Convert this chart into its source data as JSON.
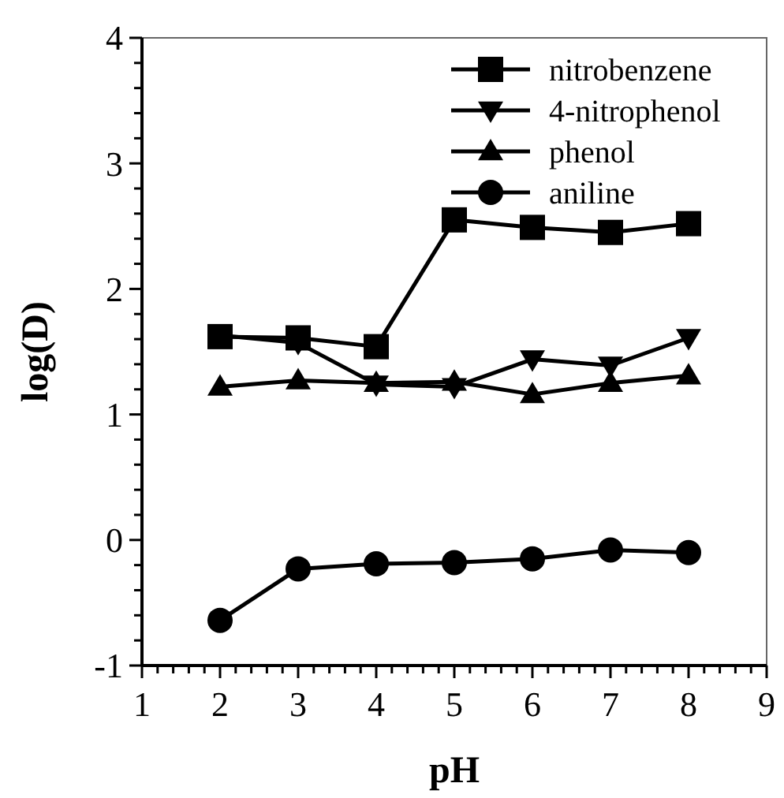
{
  "chart_data": {
    "type": "line",
    "xlabel": "pH",
    "ylabel": "log(D)",
    "x": [
      2,
      3,
      4,
      5,
      6,
      7,
      8
    ],
    "series": [
      {
        "name": "nitrobenzene",
        "color": "#000000",
        "marker": "square",
        "values": [
          1.62,
          1.61,
          1.54,
          2.55,
          2.49,
          2.45,
          2.52
        ]
      },
      {
        "name": "4-nitrophenol",
        "color": "#000000",
        "marker": "triangle-down",
        "values": [
          1.63,
          1.57,
          1.24,
          1.22,
          1.44,
          1.39,
          1.61
        ]
      },
      {
        "name": "phenol",
        "color": "#000000",
        "marker": "triangle",
        "values": [
          1.22,
          1.27,
          1.25,
          1.26,
          1.16,
          1.25,
          1.31
        ]
      },
      {
        "name": "aniline",
        "color": "#000000",
        "marker": "circle",
        "values": [
          -0.64,
          -0.23,
          -0.19,
          -0.18,
          -0.15,
          -0.08,
          -0.1
        ]
      }
    ],
    "xlim": [
      1,
      9
    ],
    "ylim": [
      -1,
      4
    ],
    "xticks": [
      1,
      {
        "value": 1.2,
        "label": null
      },
      {
        "value": 1.4,
        "label": null
      },
      {
        "value": 1.6,
        "label": null
      },
      {
        "value": 1.8,
        "label": null
      },
      2,
      {
        "value": 2.2,
        "label": null
      },
      {
        "value": 2.4,
        "label": null
      },
      {
        "value": 2.6,
        "label": null
      },
      {
        "value": 2.8,
        "label": null
      },
      3,
      {
        "value": 3.2,
        "label": null
      },
      {
        "value": 3.4,
        "label": null
      },
      {
        "value": 3.6,
        "label": null
      },
      {
        "value": 3.8,
        "label": null
      },
      4,
      {
        "value": 4.2,
        "label": null
      },
      {
        "value": 4.4,
        "label": null
      },
      {
        "value": 4.6,
        "label": null
      },
      {
        "value": 4.8,
        "label": null
      },
      5,
      {
        "value": 5.2,
        "label": null
      },
      {
        "value": 5.4,
        "label": null
      },
      {
        "value": 5.6,
        "label": null
      },
      {
        "value": 5.8,
        "label": null
      },
      6,
      {
        "value": 6.2,
        "label": null
      },
      {
        "value": 6.4,
        "label": null
      },
      {
        "value": 6.6,
        "label": null
      },
      {
        "value": 6.8,
        "label": null
      },
      7,
      {
        "value": 7.2,
        "label": null
      },
      {
        "value": 7.4,
        "label": null
      },
      {
        "value": 7.6,
        "label": null
      },
      {
        "value": 7.8,
        "label": null
      },
      8,
      {
        "value": 8.2,
        "label": null
      },
      {
        "value": 8.4,
        "label": null
      },
      {
        "value": 8.6,
        "label": null
      },
      {
        "value": 8.8,
        "label": null
      },
      9
    ],
    "yticks": [
      -1,
      {
        "value": -0.8,
        "label": null
      },
      {
        "value": -0.6,
        "label": null
      },
      {
        "value": -0.4,
        "label": null
      },
      {
        "value": -0.2,
        "label": null
      },
      0,
      {
        "value": 0.2,
        "label": null
      },
      {
        "value": 0.4,
        "label": null
      },
      {
        "value": 0.6,
        "label": null
      },
      {
        "value": 0.8,
        "label": null
      },
      1,
      {
        "value": 1.2,
        "label": null
      },
      {
        "value": 1.4,
        "label": null
      },
      {
        "value": 1.6,
        "label": null
      },
      {
        "value": 1.8,
        "label": null
      },
      2,
      {
        "value": 2.2,
        "label": null
      },
      {
        "value": 2.4,
        "label": null
      },
      {
        "value": 2.6,
        "label": null
      },
      {
        "value": 2.8,
        "label": null
      },
      3,
      {
        "value": 3.2,
        "label": null
      },
      {
        "value": 3.4,
        "label": null
      },
      {
        "value": 3.6,
        "label": null
      },
      {
        "value": 3.8,
        "label": null
      },
      4
    ],
    "legend": "top right",
    "grid": false
  }
}
